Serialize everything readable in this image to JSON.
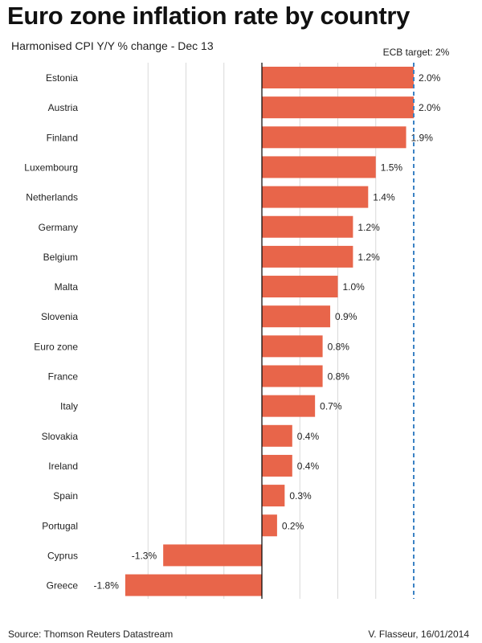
{
  "title": "Euro zone inflation rate by country",
  "subtitle": "Harmonised CPI Y/Y % change - Dec 13",
  "source": "Source: Thomson Reuters Datastream",
  "credit": "V. Flasseur, 16/01/2014",
  "colors": {
    "bar": "#E8654A",
    "target": "#3B82C4",
    "grid": "#d9d9d9",
    "axis": "#000000"
  },
  "chart_data": {
    "type": "bar",
    "orientation": "horizontal",
    "categories": [
      "Estonia",
      "Austria",
      "Finland",
      "Luxembourg",
      "Netherlands",
      "Germany",
      "Belgium",
      "Malta",
      "Slovenia",
      "Euro zone",
      "France",
      "Italy",
      "Slovakia",
      "Ireland",
      "Spain",
      "Portugal",
      "Cyprus",
      "Greece"
    ],
    "values": [
      2.0,
      2.0,
      1.9,
      1.5,
      1.4,
      1.2,
      1.2,
      1.0,
      0.9,
      0.8,
      0.8,
      0.7,
      0.4,
      0.4,
      0.3,
      0.2,
      -1.3,
      -1.8
    ],
    "labels": [
      "2.0%",
      "2.0%",
      "1.9%",
      "1.5%",
      "1.4%",
      "1.2%",
      "1.2%",
      "1.0%",
      "0.9%",
      "0.8%",
      "0.8%",
      "0.7%",
      "0.4%",
      "0.4%",
      "0.3%",
      "0.2%",
      "-1.3%",
      "-1.8%"
    ],
    "xlim": [
      -2.0,
      2.1
    ],
    "gridlines": [
      -1.5,
      -1.0,
      -0.5,
      0.5,
      1.0,
      1.5
    ],
    "target_line": {
      "value": 2.0,
      "label": "ECB target: 2%"
    }
  }
}
